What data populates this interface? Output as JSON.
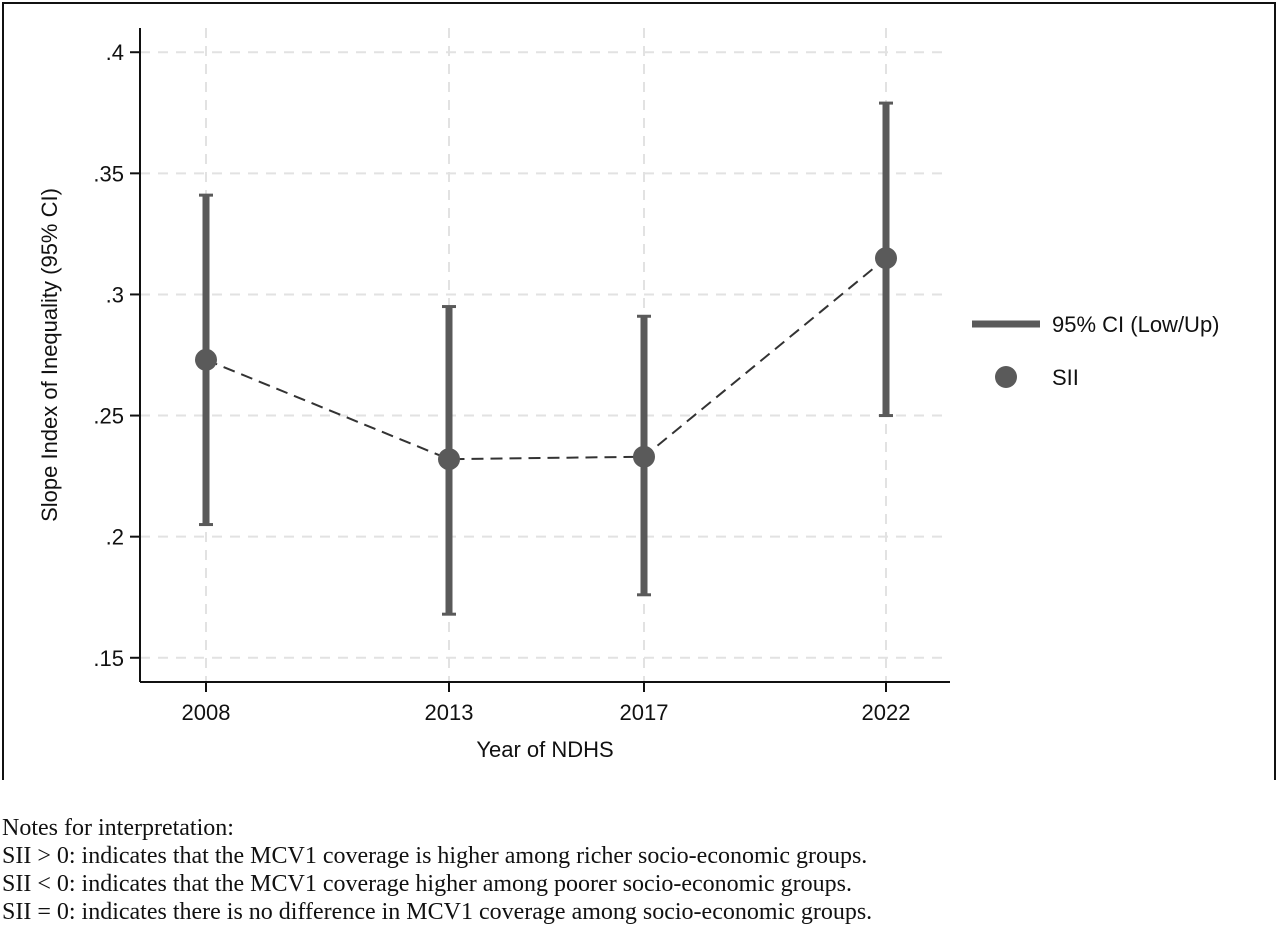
{
  "chart_data": {
    "type": "scatter",
    "xlabel": "Year of NDHS",
    "ylabel": "Slope Index of Inequality (95% CI)",
    "categories": [
      "2008",
      "2013",
      "2017",
      "2022"
    ],
    "ylim": [
      0.14,
      0.41
    ],
    "yticks": [
      0.15,
      0.2,
      0.25,
      0.3,
      0.35,
      0.4
    ],
    "ytick_labels": [
      ".15",
      ".2",
      ".25",
      ".3",
      ".35",
      ".4"
    ],
    "grid": true,
    "legend_position": "right",
    "series": [
      {
        "name": "95% CI (Low/Up)",
        "kind": "errorbar",
        "low": [
          0.205,
          0.168,
          0.176,
          0.25
        ],
        "high": [
          0.341,
          0.295,
          0.291,
          0.379
        ]
      },
      {
        "name": "SII",
        "kind": "point-dashed-line",
        "values": [
          0.273,
          0.232,
          0.233,
          0.315
        ]
      }
    ],
    "colors": {
      "series": "#5a5a5a",
      "grid": "#e2e2e2",
      "axis": "#111111"
    }
  },
  "notes": {
    "heading": "Notes for interpretation:",
    "lines": [
      "SII > 0: indicates that the MCV1 coverage is higher among richer socio-economic groups.",
      "SII < 0: indicates that the MCV1 coverage higher among poorer socio-economic groups.",
      "SII = 0: indicates there is no difference in MCV1 coverage among socio-economic groups."
    ]
  }
}
